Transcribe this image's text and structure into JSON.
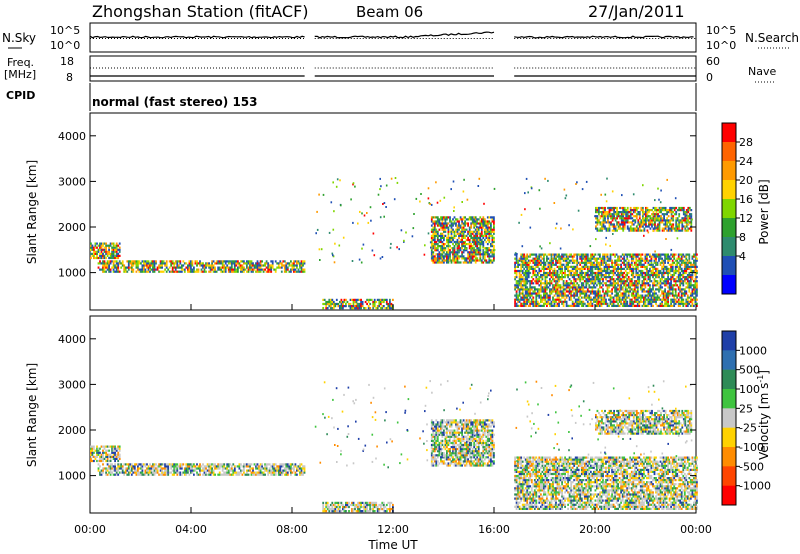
{
  "header": {
    "station": "Zhongshan Station (fitACF)",
    "beam": "Beam 06",
    "date": "27/Jan/2011"
  },
  "chart_data": [
    {
      "type": "line",
      "panel": "noise",
      "left_label": "N.Sky",
      "right_label": "N.Search",
      "left_ticks": [
        "10^5",
        "10^0"
      ],
      "right_ticks": [
        "10^5",
        "10^0"
      ],
      "data_gap_hours": [
        [
          8.5,
          8.9
        ],
        [
          16.0,
          16.8
        ]
      ]
    },
    {
      "type": "line",
      "panel": "frequency",
      "left_label": "Freq.",
      "left_unit": "[MHz]",
      "right_label": "Nave",
      "left_ticks": [
        "18",
        "8"
      ],
      "right_ticks": [
        "60",
        "0"
      ]
    },
    {
      "type": "table",
      "panel": "cpid",
      "label": "CPID",
      "mode_text": "normal (fast stereo) 153"
    },
    {
      "type": "heatmap",
      "panel": "power",
      "ylabel": "Slant Range [km]",
      "ylim": [
        180,
        4500
      ],
      "yticks": [
        1000,
        2000,
        3000,
        4000
      ],
      "colorbar_label": "Power [dB]",
      "colorbar_ticks": [
        "28",
        "24",
        "20",
        "16",
        "12",
        "8",
        "4"
      ],
      "colorbar_colors": [
        "#ff0000",
        "#ff6400",
        "#ff9a00",
        "#ffd200",
        "#7fd600",
        "#2ea12e",
        "#2e8b6e",
        "#1f4fb5",
        "#0000ff"
      ],
      "echo_bands": [
        {
          "start_h": 0.3,
          "end_h": 8.5,
          "range_km": [
            1000,
            1250
          ]
        },
        {
          "start_h": 0.0,
          "end_h": 1.2,
          "range_km": [
            1300,
            1650
          ]
        },
        {
          "start_h": 9.2,
          "end_h": 12.0,
          "range_km": [
            200,
            400
          ]
        },
        {
          "start_h": 13.5,
          "end_h": 16.0,
          "range_km": [
            1200,
            2200
          ]
        },
        {
          "start_h": 16.8,
          "end_h": 24.0,
          "range_km": [
            250,
            1400
          ]
        },
        {
          "start_h": 20.0,
          "end_h": 23.8,
          "range_km": [
            1900,
            2400
          ]
        }
      ]
    },
    {
      "type": "heatmap",
      "panel": "velocity",
      "ylabel": "Slant Range [km]",
      "xlabel": "Time UT",
      "xticks": [
        "00:00",
        "04:00",
        "08:00",
        "12:00",
        "16:00",
        "20:00",
        "00:00"
      ],
      "xlim_hours": [
        0,
        24
      ],
      "ylim": [
        180,
        4500
      ],
      "yticks": [
        1000,
        2000,
        3000,
        4000
      ],
      "colorbar_label": "Velocity [m s",
      "colorbar_label_sup": "-1",
      "colorbar_label_end": "]",
      "colorbar_ticks": [
        "1000",
        "500",
        "100",
        "25",
        "-25",
        "-100",
        "-500",
        "-1000"
      ],
      "colorbar_colors": [
        "#1f3fa8",
        "#2e6fb0",
        "#2e8b57",
        "#3fc43f",
        "#c8c8c8",
        "#ffd200",
        "#ff8c00",
        "#ff4500",
        "#ff0000"
      ]
    }
  ]
}
